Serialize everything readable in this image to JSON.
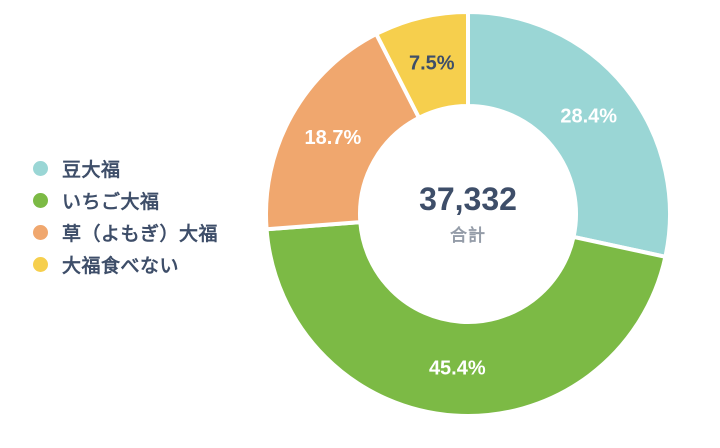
{
  "chart_data": {
    "type": "pie",
    "donut": true,
    "title": "",
    "categories": [
      "豆大福",
      "いちご大福",
      "草（よもぎ）大福",
      "大福食べない"
    ],
    "values": [
      28.4,
      45.4,
      18.7,
      7.5
    ],
    "unit": "%",
    "slice_labels": [
      "28.4%",
      "45.4%",
      "18.7%",
      "7.5%"
    ],
    "colors": [
      "#9AD6D5",
      "#7CBA45",
      "#F0A76E",
      "#F6CF4D"
    ],
    "slice_label_colors": [
      "#FFFFFF",
      "#FFFFFF",
      "#FFFFFF",
      "#3E4E69"
    ],
    "start_angle_deg": 0,
    "direction": "clockwise",
    "legend_position": "left",
    "center_value": "37,332",
    "center_label": "合計"
  },
  "colors": {
    "background": "#FFFFFF",
    "text": "#3E4E69",
    "muted_text": "#949CA8",
    "slice_gap": "#FFFFFF"
  }
}
